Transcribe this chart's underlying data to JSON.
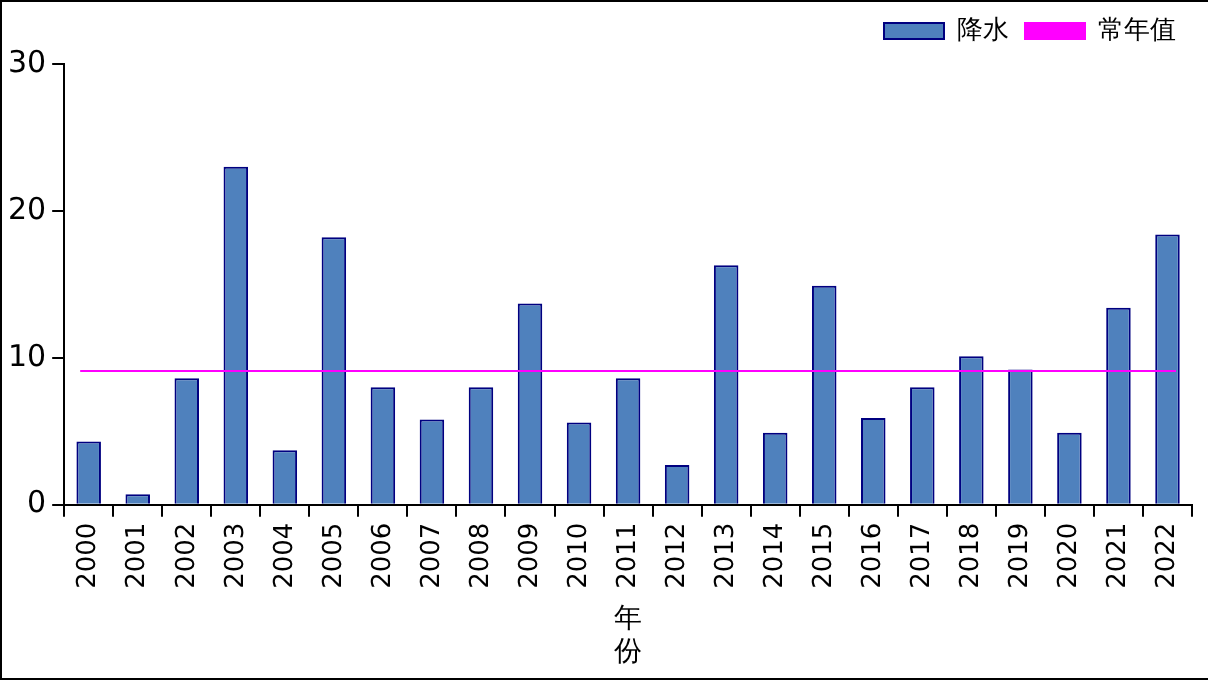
{
  "chart_data": {
    "type": "bar",
    "xlabel": "年份",
    "categories": [
      "2000",
      "2001",
      "2002",
      "2003",
      "2004",
      "2005",
      "2006",
      "2007",
      "2008",
      "2009",
      "2010",
      "2011",
      "2012",
      "2013",
      "2014",
      "2015",
      "2016",
      "2017",
      "2018",
      "2019",
      "2020",
      "2021",
      "2022"
    ],
    "series": [
      {
        "name": "降水",
        "color": "#4f81bd",
        "values": [
          4.3,
          0.7,
          8.6,
          23.0,
          3.7,
          18.2,
          8.0,
          5.8,
          8.0,
          13.7,
          5.6,
          8.6,
          2.7,
          16.3,
          4.9,
          14.9,
          5.9,
          8.0,
          10.1,
          9.2,
          4.9,
          13.4,
          18.4
        ]
      }
    ],
    "ref_lines": [
      {
        "axis": "y",
        "value": 9.1,
        "label": "常年值",
        "color": "#ff00ff"
      }
    ],
    "ylim": [
      0,
      30
    ],
    "yticks": [
      0,
      10,
      20,
      30
    ],
    "grid": false,
    "legend": "top right"
  }
}
